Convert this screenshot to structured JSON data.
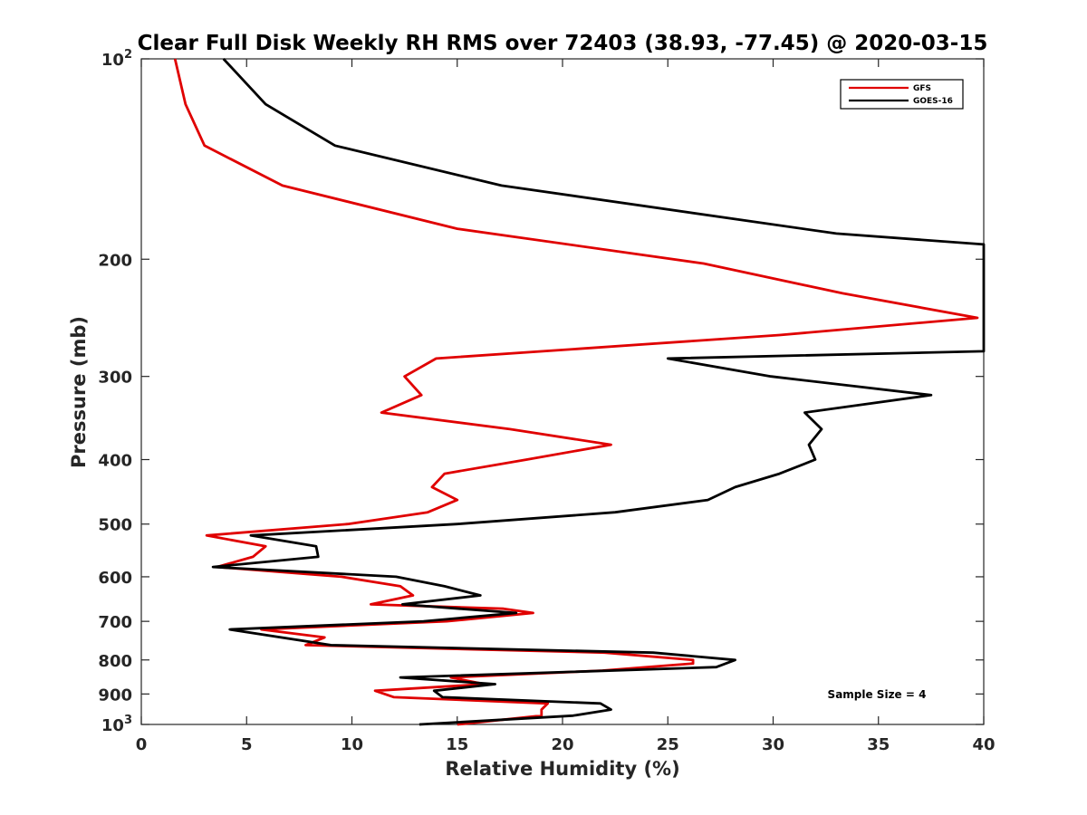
{
  "chart_data": {
    "type": "line",
    "title": "Clear Full Disk Weekly RH RMS over 72403 (38.93, -77.45) @ 2020-03-15",
    "xlabel": "Relative Humidity (%)",
    "ylabel": "Pressure (mb)",
    "xlim": [
      0,
      40
    ],
    "ylim": [
      100,
      1000
    ],
    "y_scale": "log",
    "y_reversed": true,
    "x_ticks": [
      0,
      5,
      10,
      15,
      20,
      25,
      30,
      35,
      40
    ],
    "x_tick_labels": [
      "0",
      "5",
      "10",
      "15",
      "20",
      "25",
      "30",
      "35",
      "40"
    ],
    "y_ticks": [
      100,
      200,
      300,
      400,
      500,
      600,
      700,
      800,
      900,
      1000
    ],
    "y_tick_labels": [
      {
        "base": "10",
        "exp": "2"
      },
      {
        "base": "200"
      },
      {
        "base": "300"
      },
      {
        "base": "400"
      },
      {
        "base": "500"
      },
      {
        "base": "600"
      },
      {
        "base": "700"
      },
      {
        "base": "800"
      },
      {
        "base": "900"
      },
      {
        "base": "10",
        "exp": "3"
      }
    ],
    "grid": false,
    "legend_position": "top-right",
    "annotation": "Sample Size = 4",
    "series": [
      {
        "name": "GFS",
        "color": "#e00000",
        "points": [
          [
            1.6,
            100
          ],
          [
            2.1,
            117
          ],
          [
            3.0,
            135
          ],
          [
            6.7,
            155
          ],
          [
            15.0,
            180
          ],
          [
            26.7,
            203
          ],
          [
            33.3,
            225
          ],
          [
            39.7,
            245
          ],
          [
            30.3,
            260
          ],
          [
            14.0,
            282
          ],
          [
            12.5,
            300
          ],
          [
            13.3,
            320
          ],
          [
            11.4,
            340
          ],
          [
            17.5,
            360
          ],
          [
            22.3,
            380
          ],
          [
            18.3,
            400
          ],
          [
            14.4,
            420
          ],
          [
            13.8,
            440
          ],
          [
            15.0,
            460
          ],
          [
            13.6,
            480
          ],
          [
            9.8,
            500
          ],
          [
            3.1,
            520
          ],
          [
            5.9,
            540
          ],
          [
            5.3,
            560
          ],
          [
            3.6,
            580
          ],
          [
            9.5,
            600
          ],
          [
            12.3,
            620
          ],
          [
            12.9,
            640
          ],
          [
            10.9,
            660
          ],
          [
            17.2,
            670
          ],
          [
            18.6,
            680
          ],
          [
            14.5,
            700
          ],
          [
            5.7,
            720
          ],
          [
            8.7,
            740
          ],
          [
            7.8,
            760
          ],
          [
            22.0,
            780
          ],
          [
            26.2,
            800
          ],
          [
            26.2,
            810
          ],
          [
            21.9,
            830
          ],
          [
            14.7,
            850
          ],
          [
            16.3,
            870
          ],
          [
            11.1,
            890
          ],
          [
            12.0,
            910
          ],
          [
            19.3,
            930
          ],
          [
            19.0,
            950
          ],
          [
            19.0,
            970
          ],
          [
            15.0,
            1000
          ]
        ]
      },
      {
        "name": "GOES-16",
        "color": "#000000",
        "points": [
          [
            3.9,
            100
          ],
          [
            5.9,
            117
          ],
          [
            9.2,
            135
          ],
          [
            17.1,
            155
          ],
          [
            33.0,
            183
          ],
          [
            40.0,
            190
          ],
          [
            40.0,
            275
          ],
          [
            25.0,
            282
          ],
          [
            29.9,
            300
          ],
          [
            37.5,
            320
          ],
          [
            31.5,
            340
          ],
          [
            32.3,
            360
          ],
          [
            31.7,
            380
          ],
          [
            32.0,
            400
          ],
          [
            30.3,
            420
          ],
          [
            28.2,
            440
          ],
          [
            26.9,
            460
          ],
          [
            22.5,
            480
          ],
          [
            15.0,
            500
          ],
          [
            5.2,
            520
          ],
          [
            8.3,
            540
          ],
          [
            8.4,
            560
          ],
          [
            3.4,
            580
          ],
          [
            12.1,
            600
          ],
          [
            14.4,
            620
          ],
          [
            16.1,
            640
          ],
          [
            12.4,
            660
          ],
          [
            17.8,
            680
          ],
          [
            13.4,
            700
          ],
          [
            4.2,
            720
          ],
          [
            9.0,
            760
          ],
          [
            24.3,
            780
          ],
          [
            28.2,
            800
          ],
          [
            27.3,
            820
          ],
          [
            12.3,
            850
          ],
          [
            16.8,
            870
          ],
          [
            13.9,
            890
          ],
          [
            14.3,
            910
          ],
          [
            21.8,
            930
          ],
          [
            22.3,
            950
          ],
          [
            20.5,
            970
          ],
          [
            13.2,
            1000
          ]
        ]
      }
    ]
  }
}
